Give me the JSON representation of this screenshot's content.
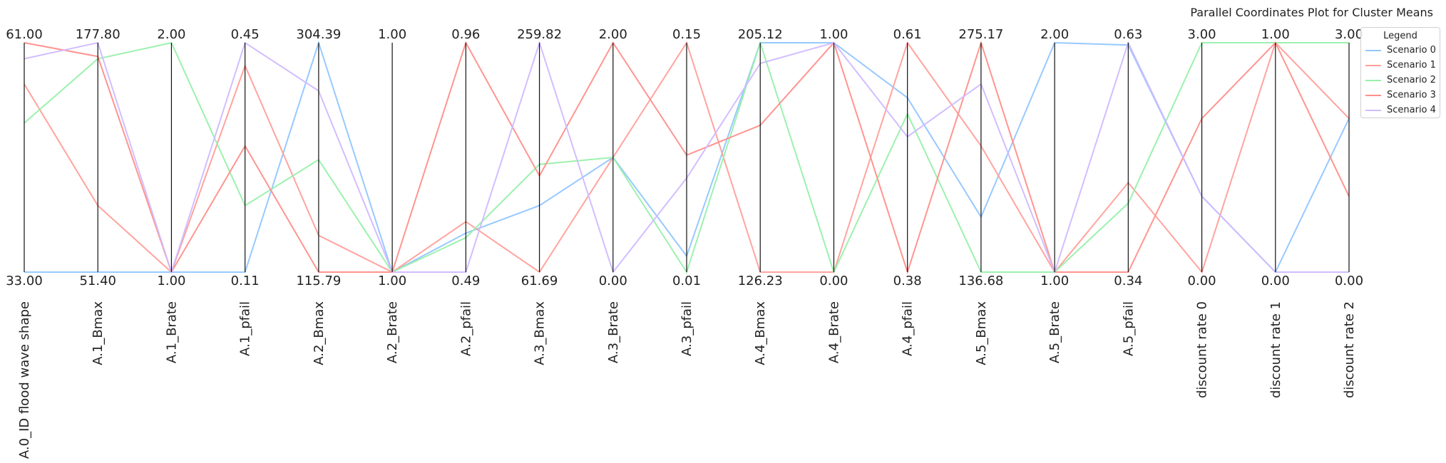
{
  "chart_data": {
    "type": "parallel-coordinates",
    "title": "Parallel Coordinates Plot for Cluster Means",
    "axes": [
      {
        "name": "A.0_ID flood wave shape",
        "min": "33.00",
        "max": "61.00"
      },
      {
        "name": "A.1_Bmax",
        "min": "51.40",
        "max": "177.80"
      },
      {
        "name": "A.1_Brate",
        "min": "1.00",
        "max": "2.00"
      },
      {
        "name": "A.1_pfail",
        "min": "0.11",
        "max": "0.45"
      },
      {
        "name": "A.2_Bmax",
        "min": "115.79",
        "max": "304.39"
      },
      {
        "name": "A.2_Brate",
        "min": "1.00",
        "max": "1.00"
      },
      {
        "name": "A.2_pfail",
        "min": "0.49",
        "max": "0.96"
      },
      {
        "name": "A.3_Bmax",
        "min": "61.69",
        "max": "259.82"
      },
      {
        "name": "A.3_Brate",
        "min": "0.00",
        "max": "2.00"
      },
      {
        "name": "A.3_pfail",
        "min": "0.01",
        "max": "0.15"
      },
      {
        "name": "A.4_Bmax",
        "min": "126.23",
        "max": "205.12"
      },
      {
        "name": "A.4_Brate",
        "min": "0.00",
        "max": "1.00"
      },
      {
        "name": "A.4_pfail",
        "min": "0.38",
        "max": "0.61"
      },
      {
        "name": "A.5_Bmax",
        "min": "136.68",
        "max": "275.17"
      },
      {
        "name": "A.5_Brate",
        "min": "1.00",
        "max": "2.00"
      },
      {
        "name": "A.5_pfail",
        "min": "0.34",
        "max": "0.63"
      },
      {
        "name": "discount rate 0",
        "min": "0.00",
        "max": "3.00"
      },
      {
        "name": "discount rate 1",
        "min": "0.00",
        "max": "1.00"
      },
      {
        "name": "discount rate 2",
        "min": "0.00",
        "max": "3.00"
      }
    ],
    "normalized_range": [
      0,
      1
    ],
    "legend_title": "Legend",
    "legend_position": "top-right",
    "grid": false,
    "series": [
      {
        "name": "Scenario 0",
        "color": "#92c6ff",
        "values": [
          0,
          0,
          0,
          0,
          1,
          0,
          0.17,
          0.29,
          0.5,
          0.07,
          1,
          1,
          0.76,
          0.24,
          1,
          0.99,
          0.33,
          0,
          0.67
        ]
      },
      {
        "name": "Scenario 1",
        "color": "#ff9f9a",
        "values": [
          0.82,
          0.29,
          0,
          0.9,
          0.16,
          0,
          0.22,
          0,
          0.5,
          1,
          0,
          0,
          1,
          0.55,
          0,
          0.39,
          0,
          1,
          0.67
        ]
      },
      {
        "name": "Scenario 2",
        "color": "#97f0aa",
        "values": [
          0.65,
          0.93,
          1,
          0.29,
          0.49,
          0,
          0.15,
          0.47,
          0.5,
          0,
          1,
          0,
          0.69,
          0,
          0,
          0.3,
          1,
          1,
          1
        ]
      },
      {
        "name": "Scenario 3",
        "color": "#ff8f8a",
        "values": [
          1,
          0.94,
          0,
          0.55,
          0,
          0,
          1,
          0.42,
          1,
          0.51,
          0.64,
          1,
          0,
          1,
          0,
          0,
          0.67,
          1,
          0.33
        ]
      },
      {
        "name": "Scenario 4",
        "color": "#d0bbff",
        "values": [
          0.93,
          1,
          0,
          1,
          0.79,
          0,
          0,
          1,
          0,
          0.41,
          0.91,
          1,
          0.59,
          0.82,
          0,
          1,
          0.33,
          0,
          0
        ]
      }
    ]
  }
}
